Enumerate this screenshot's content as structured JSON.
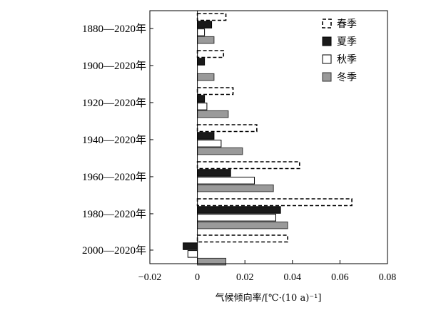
{
  "chart_data": {
    "type": "bar",
    "orientation": "horizontal",
    "categories": [
      "1880—2020年",
      "1900—2020年",
      "1920—2020年",
      "1940—2020年",
      "1960—2020年",
      "1980—2020年",
      "2000—2020年"
    ],
    "series": [
      {
        "name": "春季",
        "style": "dashed",
        "color": "#000000",
        "values": [
          0.012,
          0.011,
          0.015,
          0.025,
          0.043,
          0.065,
          0.038
        ]
      },
      {
        "name": "夏季",
        "style": "solid",
        "color": "#1a1a1a",
        "values": [
          0.006,
          0.003,
          0.003,
          0.007,
          0.014,
          0.035,
          -0.006
        ]
      },
      {
        "name": "秋季",
        "style": "open",
        "color": "#ffffff",
        "values": [
          0.003,
          0.0,
          0.004,
          0.01,
          0.024,
          0.033,
          -0.004
        ]
      },
      {
        "name": "冬季",
        "style": "gray",
        "color": "#9a9a9a",
        "values": [
          0.007,
          0.007,
          0.013,
          0.019,
          0.032,
          0.038,
          0.012
        ]
      }
    ],
    "xlim": [
      -0.02,
      0.08
    ],
    "xticks": [
      "−0.02",
      "0",
      "0.02",
      "0.04",
      "0.06",
      "0.08"
    ],
    "xlabel": "气候倾向率/[℃·(10 a)⁻¹]",
    "ylabel": "",
    "legend": "top-right",
    "grid": false
  }
}
